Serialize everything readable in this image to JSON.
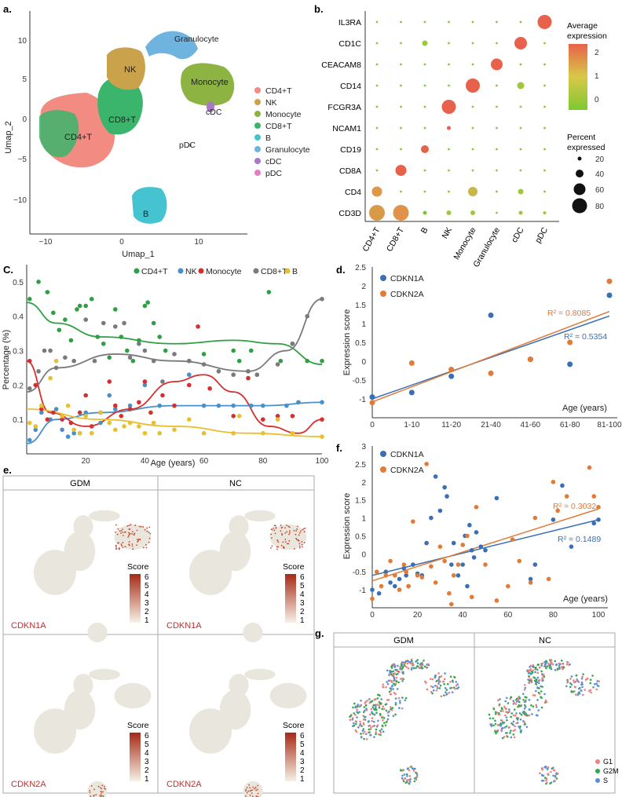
{
  "panel_labels": {
    "a": "a.",
    "b": "b.",
    "c": "C.",
    "d": "d.",
    "e": "e.",
    "f": "f.",
    "g": "g."
  },
  "colors": {
    "cd4t": "#f28b82",
    "nk": "#c9a24b",
    "monocyte": "#8db443",
    "cd8t": "#3bb56b",
    "b": "#45c3d1",
    "granulocyte": "#6fb3e0",
    "cdc": "#a878c9",
    "pdc": "#e37fc0",
    "c_cd4t": "#2ea043",
    "c_nk": "#4a90c8",
    "c_mono": "#d62f2f",
    "c_cd8t": "#7a7a7a",
    "c_b": "#e6c02e",
    "d_cdkn1a": "#3a6fb5",
    "d_cdkn2a": "#e07b39",
    "score_low": "#f1eee6",
    "score_high": "#a52a16",
    "g1": "#f07f7f",
    "g2m": "#2eaa4a",
    "s": "#5c8ed6"
  },
  "panel_a": {
    "xlabel": "Umap_1",
    "ylabel": "Umap_2",
    "xticks": [
      "−10",
      "0",
      "10"
    ],
    "yticks": [
      "10",
      "5",
      "0",
      "−5",
      "−10"
    ],
    "cluster_labels": {
      "nk": "NK",
      "cd8t": "CD8+T",
      "cd4t": "CD4+T",
      "b": "B",
      "granulocyte": "Granulocyte",
      "monocyte": "Monocyte",
      "cdc": "cDC",
      "pdc": "pDC"
    },
    "legend": [
      "CD4+T",
      "NK",
      "Monocyte",
      "CD8+T",
      "B",
      "Granulocyte",
      "cDC",
      "pDC"
    ]
  },
  "panel_b": {
    "genes": [
      "IL3RA",
      "CD1C",
      "CEACAM8",
      "CD14",
      "FCGR3A",
      "NCAM1",
      "CD19",
      "CD8A",
      "CD4",
      "CD3D"
    ],
    "cell_types": [
      "CD4+T",
      "CD8+T",
      "B",
      "NK",
      "Monocyte",
      "Granulocyte",
      "cDC",
      "pDC"
    ],
    "colorbar_title1": "Average",
    "colorbar_title2": "expression",
    "colorbar_ticks": [
      "2",
      "1",
      "0"
    ],
    "size_title1": "Percent",
    "size_title2": "expressed",
    "size_ticks": [
      "20",
      "40",
      "60",
      "80"
    ]
  },
  "chart_data": [
    {
      "type": "scatter",
      "panel": "c",
      "title": "",
      "xlabel": "Age (years)",
      "ylabel": "Percentage (%)",
      "xlim": [
        0,
        100
      ],
      "ylim": [
        0,
        0.55
      ],
      "xticks": [
        "20",
        "40",
        "60",
        "80",
        "100"
      ],
      "yticks": [
        "0.1",
        "0.2",
        "0.3",
        "0.4",
        "0.5"
      ],
      "series": [
        {
          "name": "CD4+T",
          "points": [
            [
              1,
              0.45
            ],
            [
              4,
              0.5
            ],
            [
              7,
              0.47
            ],
            [
              9,
              0.41
            ],
            [
              11,
              0.36
            ],
            [
              13,
              0.39
            ],
            [
              15,
              0.33
            ],
            [
              17,
              0.42
            ],
            [
              18,
              0.43
            ],
            [
              20,
              0.43
            ],
            [
              22,
              0.45
            ],
            [
              24,
              0.34
            ],
            [
              26,
              0.32
            ],
            [
              28,
              0.28
            ],
            [
              30,
              0.42
            ],
            [
              32,
              0.34
            ],
            [
              34,
              0.3
            ],
            [
              36,
              0.27
            ],
            [
              38,
              0.33
            ],
            [
              40,
              0.43
            ],
            [
              41,
              0.44
            ],
            [
              43,
              0.38
            ],
            [
              45,
              0.34
            ],
            [
              47,
              0.3
            ],
            [
              55,
              0.27
            ],
            [
              60,
              0.29
            ],
            [
              70,
              0.3
            ],
            [
              72,
              0.27
            ],
            [
              76,
              0.3
            ],
            [
              82,
              0.47
            ],
            [
              86,
              0.27
            ],
            [
              90,
              0.32
            ],
            [
              95,
              0.27
            ],
            [
              100,
              0.27
            ]
          ]
        },
        {
          "name": "NK",
          "points": [
            [
              1,
              0.04
            ],
            [
              3,
              0.07
            ],
            [
              5,
              0.12
            ],
            [
              8,
              0.1
            ],
            [
              10,
              0.13
            ],
            [
              12,
              0.07
            ],
            [
              14,
              0.05
            ],
            [
              16,
              0.06
            ],
            [
              18,
              0.06
            ],
            [
              20,
              0.12
            ],
            [
              25,
              0.09
            ],
            [
              28,
              0.17
            ],
            [
              30,
              0.13
            ],
            [
              35,
              0.14
            ],
            [
              40,
              0.2
            ],
            [
              45,
              0.14
            ],
            [
              50,
              0.14
            ],
            [
              55,
              0.23
            ],
            [
              60,
              0.14
            ],
            [
              65,
              0.14
            ],
            [
              70,
              0.14
            ],
            [
              76,
              0.14
            ],
            [
              80,
              0.14
            ],
            [
              88,
              0.14
            ],
            [
              92,
              0.15
            ],
            [
              100,
              0.15
            ]
          ]
        },
        {
          "name": "Monocyte",
          "points": [
            [
              1,
              0.27
            ],
            [
              3,
              0.2
            ],
            [
              5,
              0.13
            ],
            [
              7,
              0.1
            ],
            [
              9,
              0.12
            ],
            [
              12,
              0.1
            ],
            [
              15,
              0.09
            ],
            [
              18,
              0.12
            ],
            [
              20,
              0.17
            ],
            [
              22,
              0.08
            ],
            [
              25,
              0.12
            ],
            [
              28,
              0.21
            ],
            [
              30,
              0.14
            ],
            [
              32,
              0.11
            ],
            [
              35,
              0.13
            ],
            [
              38,
              0.15
            ],
            [
              40,
              0.21
            ],
            [
              42,
              0.12
            ],
            [
              46,
              0.17
            ],
            [
              50,
              0.14
            ],
            [
              55,
              0.2
            ],
            [
              58,
              0.37
            ],
            [
              62,
              0.19
            ],
            [
              70,
              0.11
            ],
            [
              75,
              0.22
            ],
            [
              80,
              0.1
            ],
            [
              85,
              0.11
            ],
            [
              90,
              0.11
            ],
            [
              100,
              0.1
            ]
          ]
        },
        {
          "name": "CD8+T",
          "points": [
            [
              1,
              0.19
            ],
            [
              4,
              0.24
            ],
            [
              6,
              0.3
            ],
            [
              8,
              0.3
            ],
            [
              10,
              0.25
            ],
            [
              13,
              0.28
            ],
            [
              16,
              0.27
            ],
            [
              20,
              0.39
            ],
            [
              23,
              0.27
            ],
            [
              26,
              0.38
            ],
            [
              30,
              0.37
            ],
            [
              33,
              0.38
            ],
            [
              35,
              0.28
            ],
            [
              38,
              0.32
            ],
            [
              40,
              0.3
            ],
            [
              43,
              0.27
            ],
            [
              46,
              0.21
            ],
            [
              50,
              0.29
            ],
            [
              55,
              0.27
            ],
            [
              60,
              0.26
            ],
            [
              65,
              0.24
            ],
            [
              70,
              0.23
            ],
            [
              75,
              0.24
            ],
            [
              78,
              0.23
            ],
            [
              85,
              0.26
            ],
            [
              90,
              0.32
            ],
            [
              95,
              0.4
            ],
            [
              100,
              0.45
            ]
          ]
        },
        {
          "name": "B",
          "points": [
            [
              1,
              0.09
            ],
            [
              3,
              0.08
            ],
            [
              5,
              0.14
            ],
            [
              8,
              0.22
            ],
            [
              10,
              0.27
            ],
            [
              12,
              0.11
            ],
            [
              14,
              0.14
            ],
            [
              16,
              0.07
            ],
            [
              18,
              0.06
            ],
            [
              20,
              0.11
            ],
            [
              22,
              0.06
            ],
            [
              25,
              0.12
            ],
            [
              28,
              0.09
            ],
            [
              30,
              0.07
            ],
            [
              33,
              0.08
            ],
            [
              35,
              0.09
            ],
            [
              38,
              0.08
            ],
            [
              40,
              0.06
            ],
            [
              43,
              0.09
            ],
            [
              45,
              0.06
            ],
            [
              50,
              0.07
            ],
            [
              55,
              0.1
            ],
            [
              60,
              0.06
            ],
            [
              70,
              0.06
            ],
            [
              72,
              0.11
            ],
            [
              80,
              0.06
            ],
            [
              85,
              0.1
            ],
            [
              90,
              0.06
            ],
            [
              100,
              0.05
            ]
          ]
        }
      ],
      "legend": [
        "CD4+T",
        "NK",
        "Monocyte",
        "CD8+T",
        "B"
      ]
    },
    {
      "type": "scatter",
      "panel": "d",
      "xlabel": "Age (years)",
      "ylabel": "Expression score",
      "categories": [
        "0",
        "1-10",
        "11-20",
        "21-40",
        "41-60",
        "61-80",
        "81-100"
      ],
      "ylim": [
        -1.5,
        2.5
      ],
      "yticks": [
        "2.5",
        "2",
        "1.5",
        "1",
        "0.5",
        "0",
        "-0.5",
        "-1"
      ],
      "series": [
        {
          "name": "CDKN1A",
          "values": [
            -0.95,
            -0.83,
            -0.4,
            1.22,
            0.05,
            -0.08,
            1.75
          ],
          "r2": "R² = 0.5354",
          "fit": [
            -1.0,
            1.2
          ]
        },
        {
          "name": "CDKN2A",
          "values": [
            -1.1,
            -0.05,
            -0.22,
            -0.32,
            0.05,
            0.5,
            2.12
          ],
          "r2": "R² = 0.8085",
          "fit": [
            -1.08,
            1.32
          ]
        }
      ]
    },
    {
      "type": "scatter",
      "panel": "f",
      "xlabel": "Age (years)",
      "ylabel": "Expression score",
      "xlim": [
        0,
        100
      ],
      "ylim": [
        -1.5,
        3
      ],
      "xticks": [
        "0",
        "20",
        "40",
        "60",
        "80",
        "100"
      ],
      "yticks": [
        "3",
        "2.5",
        "2",
        "1.5",
        "1",
        "0.5",
        "0",
        "-0.5",
        "-1"
      ],
      "series": [
        {
          "name": "CDKN1A",
          "points": [
            [
              0,
              -1.0
            ],
            [
              3,
              -1.1
            ],
            [
              6,
              -0.5
            ],
            [
              8,
              -0.8
            ],
            [
              10,
              -0.9
            ],
            [
              12,
              -0.7
            ],
            [
              14,
              -0.4
            ],
            [
              15,
              -0.6
            ],
            [
              16,
              -0.9
            ],
            [
              18,
              -0.3
            ],
            [
              20,
              -0.55
            ],
            [
              22,
              -0.6
            ],
            [
              24,
              0.3
            ],
            [
              26,
              1.0
            ],
            [
              28,
              2.15
            ],
            [
              30,
              1.2
            ],
            [
              32,
              1.85
            ],
            [
              33,
              1.6
            ],
            [
              35,
              -0.3
            ],
            [
              36,
              0.3
            ],
            [
              38,
              -0.6
            ],
            [
              40,
              -0.3
            ],
            [
              41,
              0.5
            ],
            [
              42,
              -0.9
            ],
            [
              43,
              0.8
            ],
            [
              44,
              0.1
            ],
            [
              45,
              -0.1
            ],
            [
              46,
              0.6
            ],
            [
              48,
              0.2
            ],
            [
              50,
              0.1
            ],
            [
              55,
              1.55
            ],
            [
              70,
              -0.7
            ],
            [
              72,
              -0.3
            ],
            [
              80,
              0.95
            ],
            [
              84,
              1.9
            ],
            [
              88,
              0.2
            ],
            [
              98,
              0.85
            ],
            [
              100,
              0.95
            ]
          ]
        },
        {
          "name": "CDKN2A",
          "points": [
            [
              0,
              -1.25
            ],
            [
              2,
              -0.5
            ],
            [
              4,
              -0.9
            ],
            [
              6,
              -0.6
            ],
            [
              8,
              -0.2
            ],
            [
              10,
              -0.6
            ],
            [
              12,
              -1.0
            ],
            [
              14,
              -0.3
            ],
            [
              15,
              -0.5
            ],
            [
              16,
              -0.9
            ],
            [
              18,
              0.9
            ],
            [
              20,
              -0.6
            ],
            [
              22,
              -0.65
            ],
            [
              24,
              2.5
            ],
            [
              26,
              -0.35
            ],
            [
              28,
              -0.8
            ],
            [
              30,
              0.2
            ],
            [
              32,
              -0.2
            ],
            [
              34,
              -1.1
            ],
            [
              35,
              -1.4
            ],
            [
              36,
              -0.6
            ],
            [
              38,
              -0.3
            ],
            [
              40,
              0.25
            ],
            [
              42,
              0.5
            ],
            [
              44,
              -1.2
            ],
            [
              46,
              1.3
            ],
            [
              50,
              -0.3
            ],
            [
              55,
              -1.3
            ],
            [
              60,
              -0.9
            ],
            [
              62,
              0.4
            ],
            [
              65,
              -0.2
            ],
            [
              70,
              -0.8
            ],
            [
              72,
              1.0
            ],
            [
              78,
              -0.7
            ],
            [
              80,
              2.0
            ],
            [
              82,
              1.2
            ],
            [
              86,
              1.6
            ],
            [
              96,
              2.4
            ],
            [
              98,
              1.6
            ],
            [
              100,
              1.3
            ]
          ]
        }
      ],
      "r2": {
        "CDKN1A": "R² = 0.1489",
        "CDKN2A": "R² = 0.3032"
      },
      "fit": {
        "CDKN1A": [
          -0.6,
          0.95
        ],
        "CDKN2A": [
          -0.75,
          1.25
        ]
      }
    }
  ],
  "panel_e": {
    "headers": [
      "GDM",
      "NC"
    ],
    "genes": [
      "CDKN1A",
      "CDKN2A"
    ],
    "score_title": "Score",
    "score_ticks": [
      "6",
      "5",
      "4",
      "3",
      "2",
      "1"
    ]
  },
  "panel_g": {
    "headers": [
      "GDM",
      "NC"
    ],
    "legend": [
      "G1",
      "G2M",
      "S"
    ]
  }
}
